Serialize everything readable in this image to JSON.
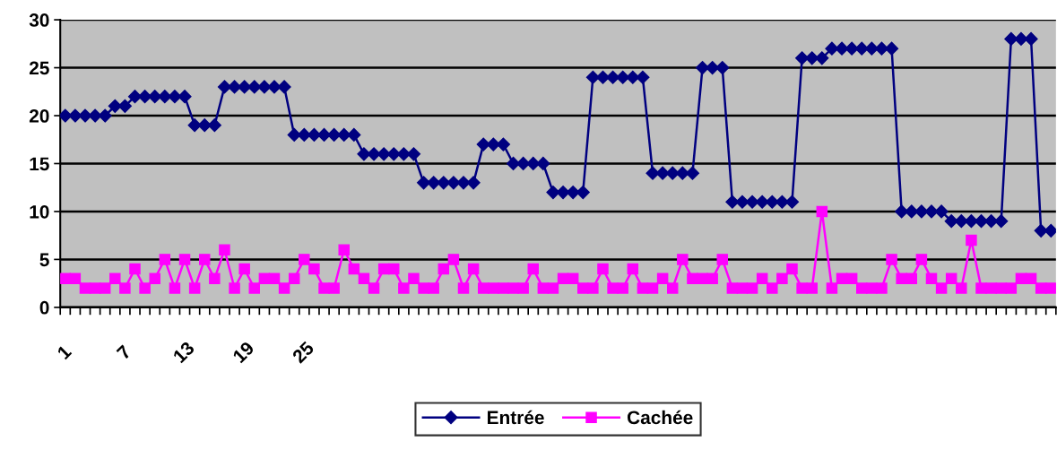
{
  "chart_data": {
    "type": "line",
    "categories": [
      "1",
      null,
      null,
      null,
      null,
      null,
      "7",
      null,
      null,
      null,
      null,
      null,
      "13",
      null,
      null,
      null,
      null,
      null,
      "19",
      null,
      null,
      null,
      null,
      null,
      "25",
      null,
      null,
      null,
      null,
      null,
      null,
      null,
      null,
      null,
      null,
      null,
      null,
      null,
      null,
      null,
      null,
      null,
      null,
      null,
      null,
      null,
      null,
      null,
      null,
      null,
      null,
      null,
      null,
      null,
      null,
      null,
      null,
      null,
      null,
      null,
      null,
      null,
      null,
      null,
      null,
      null,
      null,
      null,
      null,
      null,
      null,
      null,
      null,
      null,
      null,
      null,
      null,
      null,
      null,
      null,
      null,
      null,
      null,
      null,
      null,
      null,
      null,
      null,
      null,
      null,
      null,
      null,
      null,
      null,
      null,
      null,
      null,
      null,
      null,
      null
    ],
    "series": [
      {
        "name": "Entrée",
        "color": "#000080",
        "marker": "diamond",
        "values": [
          20,
          20,
          20,
          20,
          20,
          21,
          21,
          22,
          22,
          22,
          22,
          22,
          22,
          19,
          19,
          19,
          23,
          23,
          23,
          23,
          23,
          23,
          23,
          18,
          18,
          18,
          18,
          18,
          18,
          18,
          16,
          16,
          16,
          16,
          16,
          16,
          13,
          13,
          13,
          13,
          13,
          13,
          17,
          17,
          17,
          15,
          15,
          15,
          15,
          12,
          12,
          12,
          12,
          24,
          24,
          24,
          24,
          24,
          24,
          14,
          14,
          14,
          14,
          14,
          25,
          25,
          25,
          11,
          11,
          11,
          11,
          11,
          11,
          11,
          26,
          26,
          26,
          27,
          27,
          27,
          27,
          27,
          27,
          27,
          10,
          10,
          10,
          10,
          10,
          9,
          9,
          9,
          9,
          9,
          9,
          28,
          28,
          28,
          8,
          8
        ]
      },
      {
        "name": "Cachée",
        "color": "#ff00ff",
        "marker": "square",
        "values": [
          3,
          3,
          2,
          2,
          2,
          3,
          2,
          4,
          2,
          3,
          5,
          2,
          5,
          2,
          5,
          3,
          6,
          2,
          4,
          2,
          3,
          3,
          2,
          3,
          5,
          4,
          2,
          2,
          6,
          4,
          3,
          2,
          4,
          4,
          2,
          3,
          2,
          2,
          4,
          5,
          2,
          4,
          2,
          2,
          2,
          2,
          2,
          4,
          2,
          2,
          3,
          3,
          2,
          2,
          4,
          2,
          2,
          4,
          2,
          2,
          3,
          2,
          5,
          3,
          3,
          3,
          5,
          2,
          2,
          2,
          3,
          2,
          3,
          4,
          2,
          2,
          10,
          2,
          3,
          3,
          2,
          2,
          2,
          5,
          3,
          3,
          5,
          3,
          2,
          3,
          2,
          7,
          2,
          2,
          2,
          2,
          3,
          3,
          2,
          2
        ]
      }
    ],
    "ylim": [
      0,
      30
    ],
    "yticks": [
      0,
      5,
      10,
      15,
      20,
      25,
      30
    ],
    "grid": "y",
    "legend": "bottom",
    "line_style": "solid"
  }
}
